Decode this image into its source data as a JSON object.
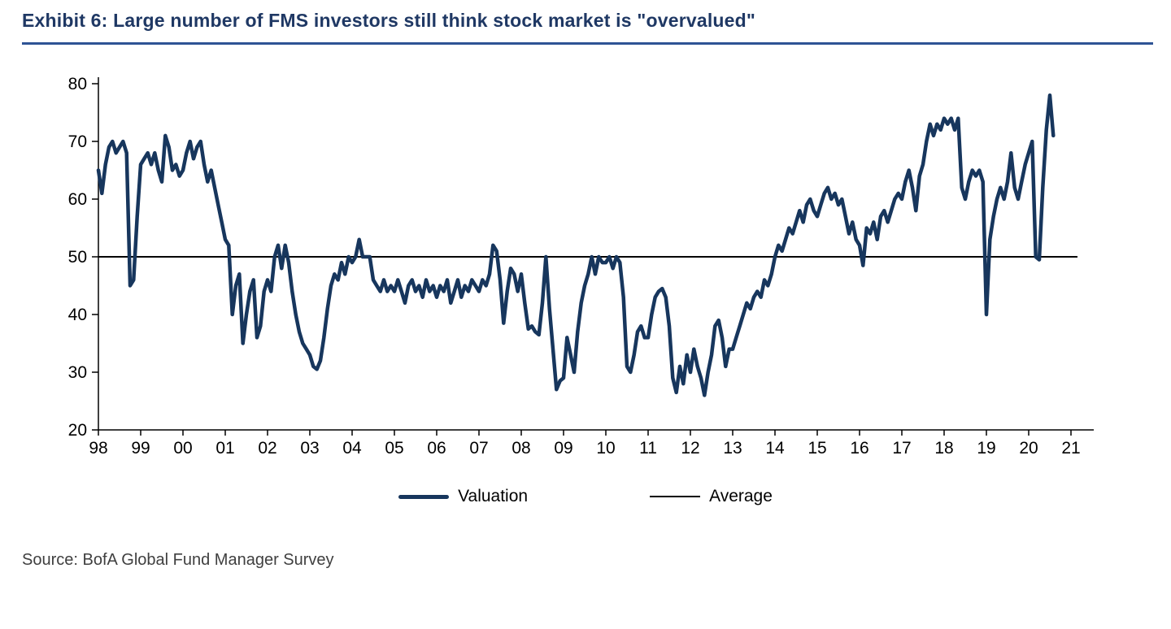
{
  "title": "Exhibit 6: Large number of FMS investors still think stock market is \"overvalued\"",
  "source": "Source: BofA Global Fund Manager Survey",
  "colors": {
    "title_text": "#1F3864",
    "title_rule": "#2E5395",
    "series_line": "#17365D",
    "average_line": "#000000",
    "axis": "#000000",
    "source_text": "#3F3F3F"
  },
  "legend": {
    "items": [
      {
        "label": "Valuation",
        "style": "thick"
      },
      {
        "label": "Average",
        "style": "thin"
      }
    ]
  },
  "chart_data": {
    "type": "line",
    "title": "Exhibit 6: Large number of FMS investors still think stock market is \"overvalued\"",
    "xlabel": "",
    "ylabel": "",
    "x_start_year": 1998,
    "x_step_months": 1,
    "x_tick_labels": [
      "98",
      "99",
      "00",
      "01",
      "02",
      "03",
      "04",
      "05",
      "06",
      "07",
      "08",
      "09",
      "10",
      "11",
      "12",
      "13",
      "14",
      "15",
      "16",
      "17",
      "18",
      "19",
      "20",
      "21"
    ],
    "y_ticks": [
      20,
      30,
      40,
      50,
      60,
      70,
      80
    ],
    "ylim": [
      20,
      80
    ],
    "xlim": [
      1998,
      2021.5
    ],
    "grid": false,
    "legend_position": "bottom-center",
    "average_value": 50,
    "series": [
      {
        "name": "Valuation",
        "frequency": "monthly",
        "values": [
          65,
          61,
          66,
          69,
          70,
          68,
          69,
          70,
          68,
          45,
          46,
          57,
          66,
          67,
          68,
          66,
          68,
          65,
          63,
          71,
          69,
          65,
          66,
          64,
          65,
          68,
          70,
          67,
          69,
          70,
          66,
          63,
          65,
          62,
          59,
          56,
          53,
          52,
          40,
          45,
          47,
          35,
          40,
          44,
          46,
          36,
          38,
          44,
          46,
          44,
          50,
          52,
          48,
          52,
          49,
          44,
          40,
          37,
          35,
          34,
          33,
          31,
          30.5,
          32,
          36,
          41,
          45,
          47,
          46,
          49,
          47,
          50,
          49,
          50,
          53,
          50,
          50,
          50,
          46,
          45,
          44,
          46,
          44,
          45,
          44,
          46,
          44,
          42,
          45,
          46,
          44,
          45,
          43,
          46,
          44,
          45,
          43,
          45,
          44,
          46,
          42,
          44,
          46,
          43,
          45,
          44,
          46,
          45,
          44,
          46,
          45,
          47,
          52,
          51,
          46,
          38.5,
          44,
          48,
          47,
          44,
          47,
          42,
          37.5,
          38,
          37,
          36.5,
          42,
          50,
          41,
          34,
          27,
          28.5,
          29,
          36,
          33,
          30,
          37,
          42,
          45,
          47,
          50,
          47,
          50,
          49,
          49,
          50,
          48,
          50,
          49,
          43,
          31,
          30,
          33,
          37,
          38,
          36,
          36,
          40,
          43,
          44,
          44.5,
          43,
          38,
          29,
          26.5,
          31,
          28,
          33,
          30,
          34,
          31,
          29,
          26,
          30,
          33,
          38,
          39,
          36,
          31,
          34,
          34,
          36,
          38,
          40,
          42,
          41,
          43,
          44,
          43,
          46,
          45,
          47,
          50,
          52,
          51,
          53,
          55,
          54,
          56,
          58,
          56,
          59,
          60,
          58,
          57,
          59,
          61,
          62,
          60,
          61,
          59,
          60,
          57,
          54,
          56,
          53,
          52,
          48.5,
          55,
          54,
          56,
          53,
          57,
          58,
          56,
          58,
          60,
          61,
          60,
          63,
          65,
          62,
          58,
          64,
          66,
          70,
          73,
          71,
          73,
          72,
          74,
          73,
          74,
          72,
          74,
          62,
          60,
          63,
          65,
          64,
          65,
          63,
          40,
          53,
          57,
          60,
          62,
          60,
          63,
          68,
          62,
          60,
          63,
          66,
          68,
          70,
          50,
          49.5,
          62,
          72,
          78,
          71
        ]
      },
      {
        "name": "Average",
        "value": 50
      }
    ]
  }
}
